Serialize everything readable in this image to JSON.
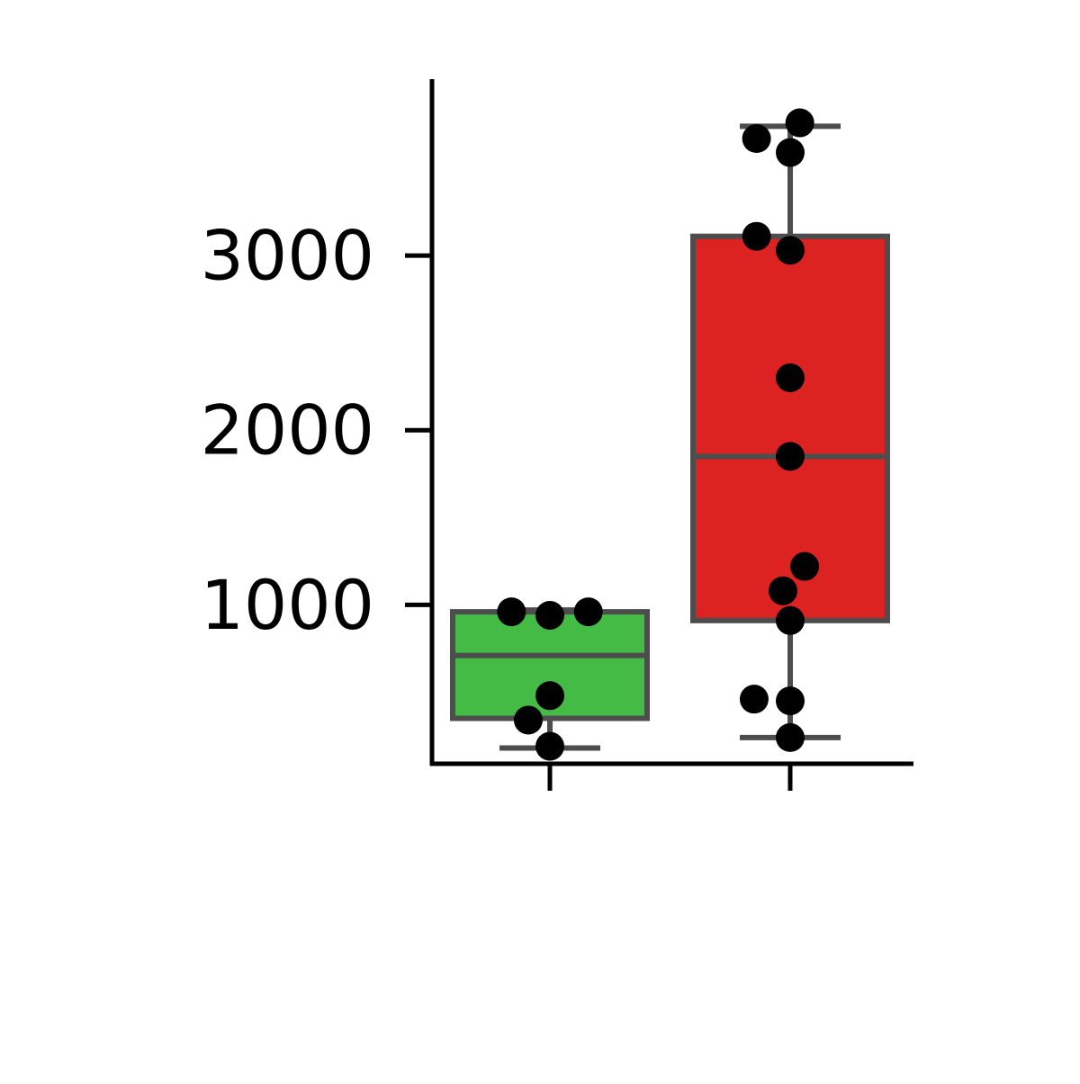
{
  "chart_data": {
    "type": "box",
    "title": "",
    "xlabel": "",
    "ylabel": "",
    "ylim": [
      90,
      4010
    ],
    "yticks": [
      1000,
      2000,
      3000
    ],
    "ytick_labels": [
      "1000",
      "2000",
      "3000"
    ],
    "grid": false,
    "legend": "none",
    "series": [
      {
        "color": "#44bb44",
        "box": {
          "whisker_low": 180,
          "q1": 350,
          "median": 710,
          "q3": 960,
          "whisker_high": 970
        },
        "points": [
          {
            "y": 960,
            "jitter": -0.16
          },
          {
            "y": 940,
            "jitter": 0.0
          },
          {
            "y": 960,
            "jitter": 0.16
          },
          {
            "y": 480,
            "jitter": 0.0
          },
          {
            "y": 340,
            "jitter": -0.09
          },
          {
            "y": 190,
            "jitter": 0.0
          }
        ]
      },
      {
        "color": "#dd2222",
        "box": {
          "whisker_low": 240,
          "q1": 910,
          "median": 1850,
          "q3": 3110,
          "whisker_high": 3740
        },
        "points": [
          {
            "y": 3760,
            "jitter": 0.04
          },
          {
            "y": 3670,
            "jitter": -0.14
          },
          {
            "y": 3590,
            "jitter": 0.0
          },
          {
            "y": 3110,
            "jitter": -0.14
          },
          {
            "y": 3030,
            "jitter": 0.0
          },
          {
            "y": 2300,
            "jitter": 0.0
          },
          {
            "y": 1850,
            "jitter": 0.0
          },
          {
            "y": 1220,
            "jitter": 0.06
          },
          {
            "y": 1080,
            "jitter": -0.03
          },
          {
            "y": 910,
            "jitter": 0.0
          },
          {
            "y": 460,
            "jitter": -0.15
          },
          {
            "y": 450,
            "jitter": 0.0
          },
          {
            "y": 240,
            "jitter": 0.0
          }
        ]
      }
    ],
    "colors": {
      "axis": "#000000",
      "box_edge": "#4d4d4d",
      "point": "#000000"
    }
  }
}
